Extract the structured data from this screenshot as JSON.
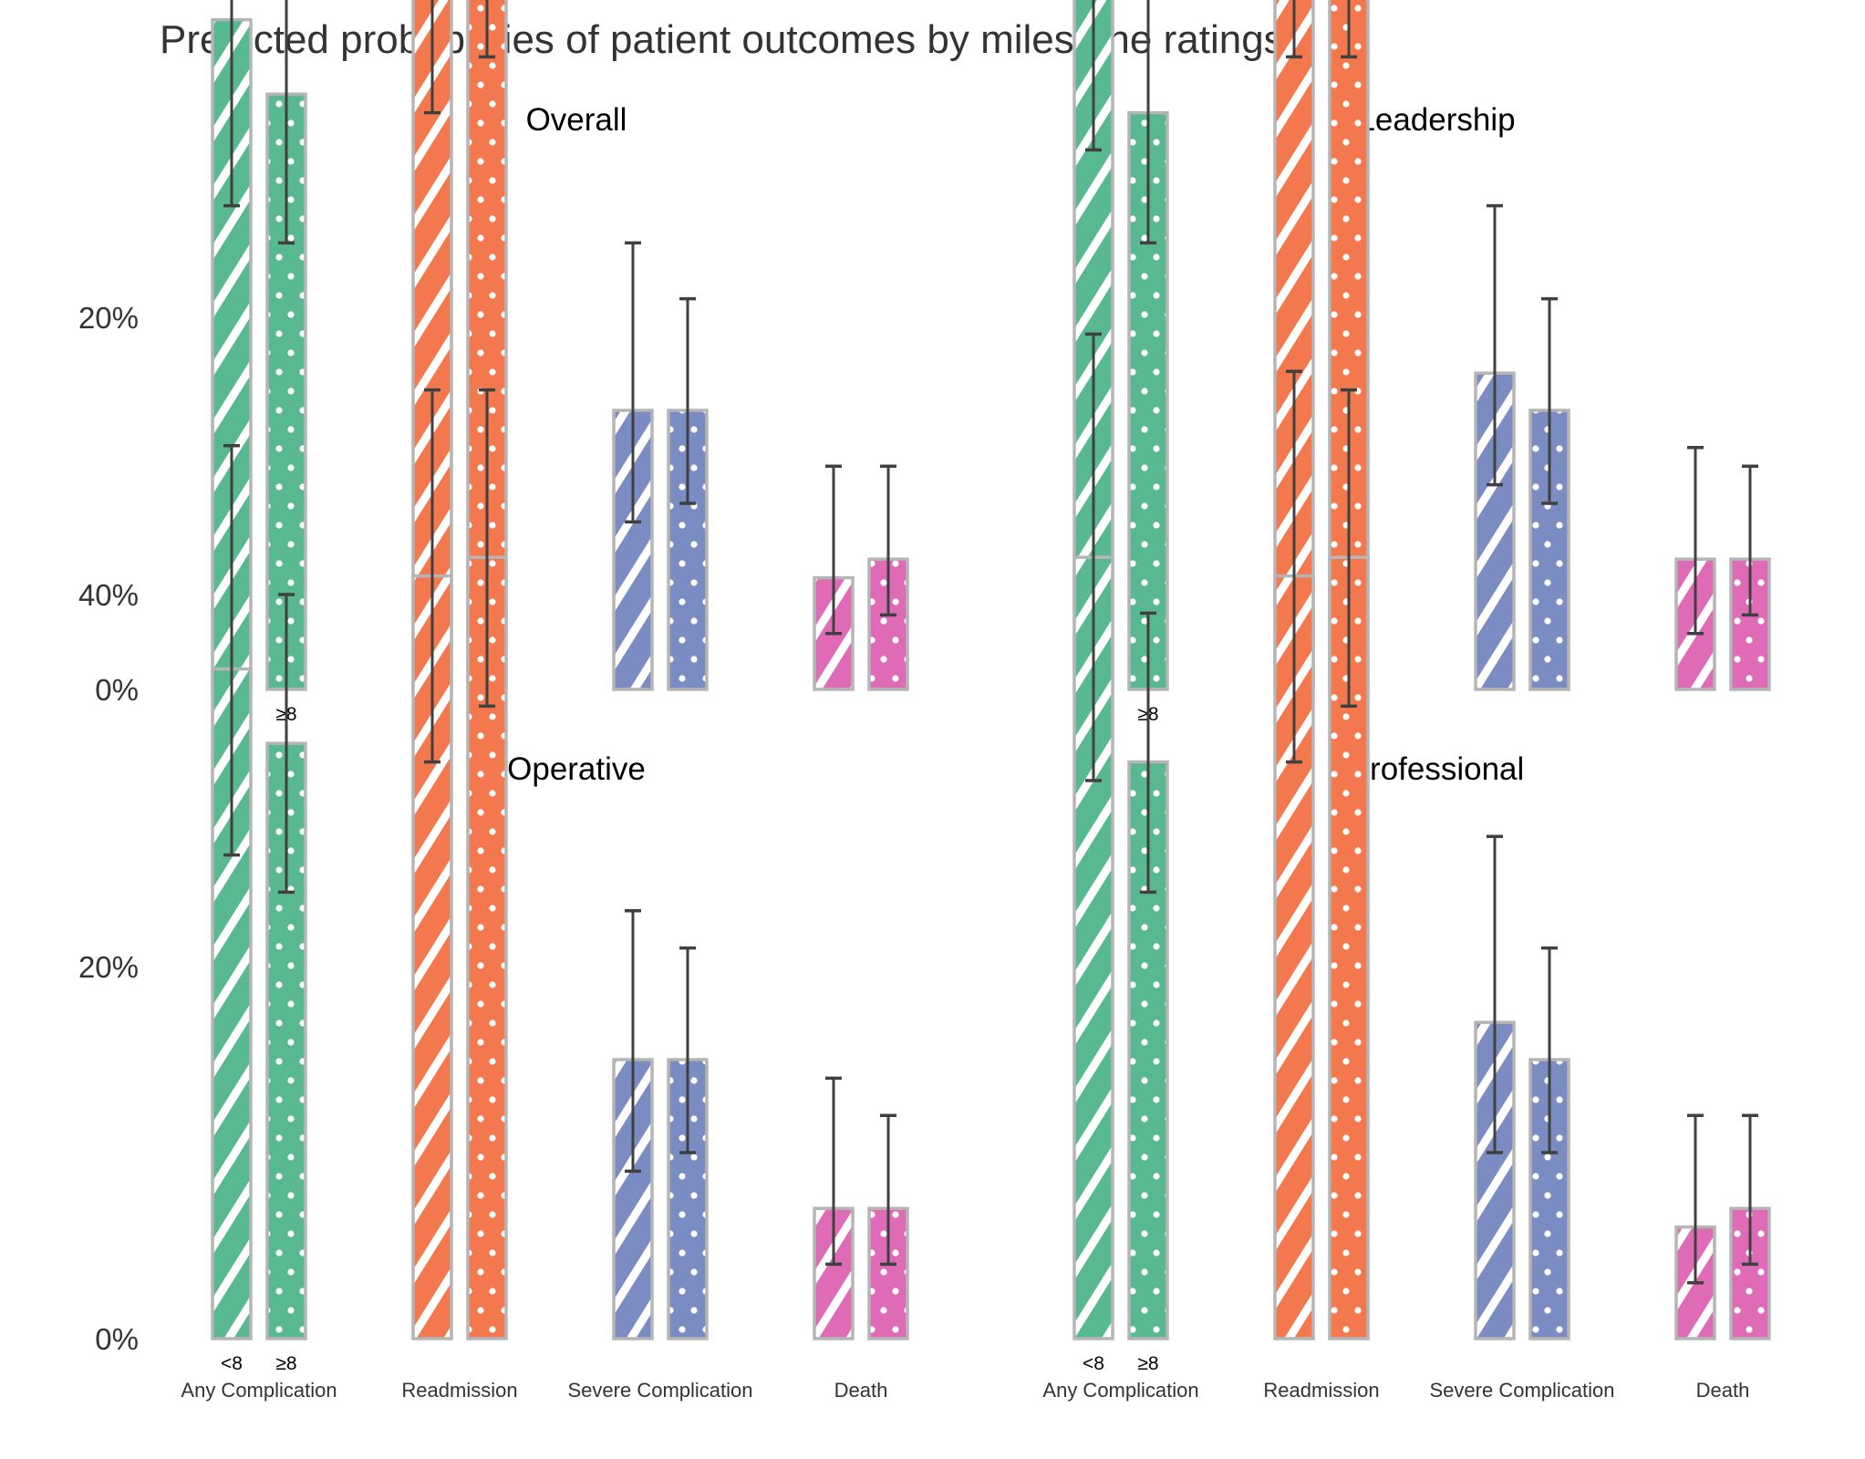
{
  "chart_data": {
    "type": "bar",
    "title": "Predicted probabilities of patient outcomes by milestone ratings",
    "y_tick_labels": [
      "0%",
      "20%",
      "40%"
    ],
    "ylim": [
      0,
      0.6
    ],
    "group_labels": [
      "<8",
      "≥8"
    ],
    "outcomes": [
      "Any Complication",
      "Readmission",
      "Severe Complication",
      "Death"
    ],
    "colors": {
      "Any Complication": "#58b990",
      "Readmission": "#f4784d",
      "Severe Complication": "#7b8cc2",
      "Death": "#df6bb7",
      "bar_edge": "#b5b5b5",
      "errorbar": "#404040"
    },
    "pattern_legend": {
      "<8": "diagonal-stripes",
      "≥8": "dots"
    },
    "panels": [
      {
        "title": "Overall",
        "values": {
          "<8": [
            0.36,
            0.41,
            0.15,
            0.06
          ],
          "≥8": [
            0.32,
            0.42,
            0.15,
            0.07
          ]
        },
        "ci": {
          "<8": [
            [
              0.26,
              0.47
            ],
            [
              0.31,
              0.51
            ],
            [
              0.09,
              0.24
            ],
            [
              0.03,
              0.12
            ]
          ],
          "≥8": [
            [
              0.24,
              0.4
            ],
            [
              0.34,
              0.51
            ],
            [
              0.1,
              0.21
            ],
            [
              0.04,
              0.12
            ]
          ]
        }
      },
      {
        "title": "Leadership",
        "values": {
          "<8": [
            0.39,
            0.44,
            0.17,
            0.07
          ],
          "≥8": [
            0.31,
            0.42,
            0.15,
            0.07
          ]
        },
        "ci": {
          "<8": [
            [
              0.29,
              0.5
            ],
            [
              0.34,
              0.55
            ],
            [
              0.11,
              0.26
            ],
            [
              0.03,
              0.13
            ]
          ],
          "≥8": [
            [
              0.24,
              0.39
            ],
            [
              0.34,
              0.5
            ],
            [
              0.1,
              0.21
            ],
            [
              0.04,
              0.12
            ]
          ]
        }
      },
      {
        "title": "Operative",
        "values": {
          "<8": [
            0.36,
            0.41,
            0.15,
            0.07
          ],
          "≥8": [
            0.32,
            0.42,
            0.15,
            0.07
          ]
        },
        "ci": {
          "<8": [
            [
              0.26,
              0.48
            ],
            [
              0.31,
              0.51
            ],
            [
              0.09,
              0.23
            ],
            [
              0.04,
              0.14
            ]
          ],
          "≥8": [
            [
              0.24,
              0.4
            ],
            [
              0.34,
              0.51
            ],
            [
              0.1,
              0.21
            ],
            [
              0.04,
              0.12
            ]
          ]
        }
      },
      {
        "title": "Professional",
        "values": {
          "<8": [
            0.42,
            0.41,
            0.17,
            0.06
          ],
          "≥8": [
            0.31,
            0.42,
            0.15,
            0.07
          ]
        },
        "ci": {
          "<8": [
            [
              0.3,
              0.54
            ],
            [
              0.31,
              0.52
            ],
            [
              0.1,
              0.27
            ],
            [
              0.03,
              0.12
            ]
          ],
          "≥8": [
            [
              0.24,
              0.39
            ],
            [
              0.34,
              0.51
            ],
            [
              0.1,
              0.21
            ],
            [
              0.04,
              0.12
            ]
          ]
        }
      }
    ]
  }
}
